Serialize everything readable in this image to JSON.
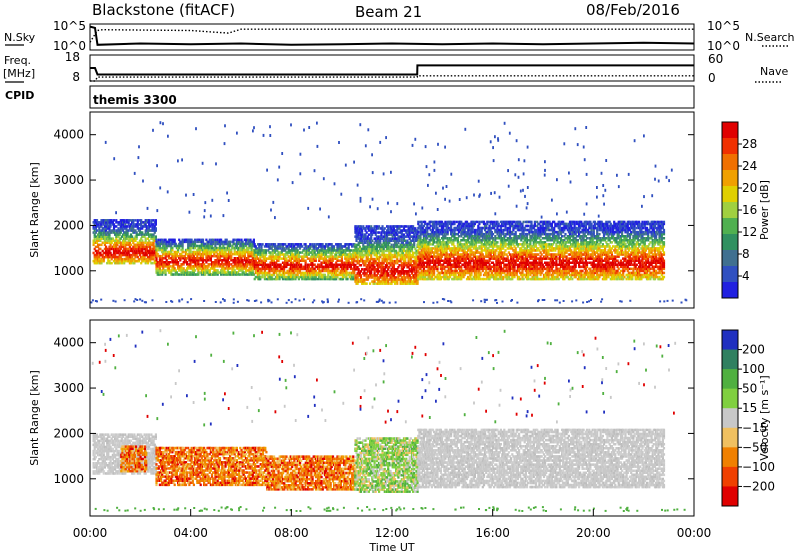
{
  "header": {
    "station": "Blackstone (fitACF)",
    "beam": "Beam 21",
    "date": "08/Feb/2016"
  },
  "left_labels": {
    "nsky": "N.Sky",
    "freq_top": "Freq.",
    "freq_unit": "[MHz]",
    "cpid": "CPID"
  },
  "right_labels": {
    "nsearch": "N.Search",
    "nave": "Nave"
  },
  "cpid_text": "themis 3300",
  "chart_data": [
    {
      "type": "line",
      "name": "noise-panel",
      "x_range_hours": [
        0,
        24
      ],
      "left_axis_ticks": [
        "10^5",
        "10^0"
      ],
      "right_axis_ticks": [
        "10^5",
        "10^0"
      ],
      "series": [
        {
          "name": "N.Sky",
          "style": "solid",
          "x": [
            0,
            0.2,
            0.3,
            2,
            4,
            6,
            8,
            10,
            12,
            14,
            16,
            18,
            20,
            22,
            24
          ],
          "y": [
            0.9,
            0.85,
            0.2,
            0.25,
            0.22,
            0.25,
            0.2,
            0.22,
            0.25,
            0.22,
            0.25,
            0.22,
            0.25,
            0.28,
            0.25
          ]
        },
        {
          "name": "N.Search",
          "style": "dotted",
          "x": [
            0,
            0.3,
            0.5,
            4,
            5.5,
            6,
            8,
            12,
            16,
            20,
            24
          ],
          "y": [
            0.3,
            0.75,
            0.78,
            0.75,
            0.65,
            0.8,
            0.8,
            0.8,
            0.8,
            0.8,
            0.8
          ]
        }
      ]
    },
    {
      "type": "line",
      "name": "frequency-panel",
      "x_range_hours": [
        0,
        24
      ],
      "left_axis_ticks": [
        "18",
        "8"
      ],
      "right_axis_ticks": [
        "60",
        "0"
      ],
      "series": [
        {
          "name": "Freq.",
          "style": "solid",
          "x": [
            0,
            0.2,
            0.3,
            13,
            13.01,
            24
          ],
          "y": [
            13,
            13,
            10.5,
            10.5,
            14,
            14
          ]
        },
        {
          "name": "Nave",
          "style": "dotted",
          "x": [
            0,
            0.2,
            0.3,
            13,
            13.01,
            24
          ],
          "y": [
            8,
            8,
            9.5,
            9.5,
            10,
            10
          ]
        }
      ]
    },
    {
      "type": "heatmap",
      "name": "power-panel",
      "x_range_hours": [
        0,
        24
      ],
      "y_range_km": [
        180,
        4500
      ],
      "ylabel": "Slant Range [km]",
      "y_ticks": [
        1000,
        2000,
        3000,
        4000
      ],
      "colorbar": {
        "label": "Power [dB]",
        "ticks": [
          "28",
          "24",
          "20",
          "16",
          "12",
          "8",
          "4"
        ],
        "colors": [
          "#e00000",
          "#f03000",
          "#f07000",
          "#f0a000",
          "#e0d000",
          "#a0d040",
          "#50b050",
          "#309060",
          "#407090",
          "#3050c0",
          "#2020e0"
        ]
      },
      "bands": [
        {
          "x0": 0.1,
          "x1": 2.6,
          "y0": 1150,
          "y1": 2100,
          "peak": 1400,
          "color": "power"
        },
        {
          "x0": 2.6,
          "x1": 6.5,
          "y0": 900,
          "y1": 1700,
          "peak": 1200,
          "color": "power"
        },
        {
          "x0": 6.5,
          "x1": 10.5,
          "y0": 800,
          "y1": 1600,
          "peak": 1100,
          "color": "power"
        },
        {
          "x0": 10.5,
          "x1": 13.0,
          "y0": 700,
          "y1": 2000,
          "peak": 1000,
          "color": "power"
        },
        {
          "x0": 13.0,
          "x1": 22.8,
          "y0": 800,
          "y1": 2100,
          "peak": 1150,
          "color": "power"
        }
      ]
    },
    {
      "type": "heatmap",
      "name": "velocity-panel",
      "x_range_hours": [
        0,
        24
      ],
      "y_range_km": [
        180,
        4500
      ],
      "ylabel": "Slant Range [km]",
      "y_ticks": [
        1000,
        2000,
        3000,
        4000
      ],
      "colorbar": {
        "label": "Velocity [m s⁻¹]",
        "ticks": [
          "200",
          "100",
          "50",
          "15",
          "−15",
          "−50",
          "−100",
          "−200"
        ],
        "colors": [
          "#2030c0",
          "#308060",
          "#50b040",
          "#80d040",
          "#c8c8c8",
          "#f0c060",
          "#f08000",
          "#f04000",
          "#e00000"
        ]
      },
      "bands": [
        {
          "x0": 0.1,
          "x1": 2.6,
          "y0": 1100,
          "y1": 2000,
          "color": "grey"
        },
        {
          "x0": 1.2,
          "x1": 2.2,
          "y0": 1150,
          "y1": 1700,
          "color": "orange"
        },
        {
          "x0": 2.6,
          "x1": 7.0,
          "y0": 850,
          "y1": 1700,
          "color": "orange"
        },
        {
          "x0": 7.0,
          "x1": 10.5,
          "y0": 750,
          "y1": 1500,
          "color": "orange"
        },
        {
          "x0": 10.5,
          "x1": 13.0,
          "y0": 700,
          "y1": 1900,
          "color": "green"
        },
        {
          "x0": 13.0,
          "x1": 22.8,
          "y0": 800,
          "y1": 2100,
          "color": "grey"
        }
      ]
    }
  ],
  "x_axis": {
    "label": "Time UT",
    "ticks": [
      "00:00",
      "04:00",
      "08:00",
      "12:00",
      "16:00",
      "20:00",
      "00:00"
    ]
  }
}
